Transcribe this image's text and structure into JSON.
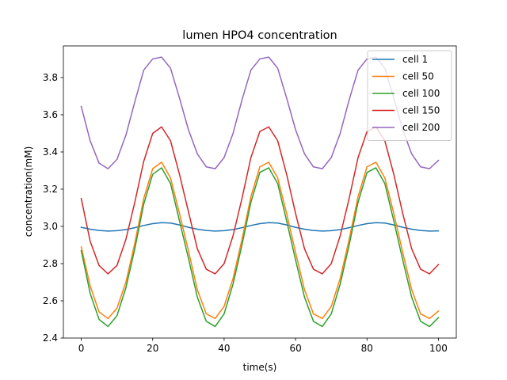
{
  "chart_data": {
    "type": "line",
    "title": "lumen HPO4 concentration",
    "xlabel": "time(s)",
    "ylabel": "concentration(mM)",
    "xlim": [
      -5,
      105
    ],
    "ylim": [
      2.4,
      3.97
    ],
    "xticks": [
      0,
      20,
      40,
      60,
      80,
      100
    ],
    "xtick_labels": [
      "0",
      "20",
      "40",
      "60",
      "80",
      "100"
    ],
    "yticks": [
      2.4,
      2.6,
      2.8,
      3.0,
      3.2,
      3.4,
      3.6,
      3.8
    ],
    "ytick_labels": [
      "2.4",
      "2.6",
      "2.8",
      "3.0",
      "3.2",
      "3.4",
      "3.6",
      "3.8"
    ],
    "grid": false,
    "legend_position": "top-right",
    "x": [
      0,
      2.5,
      5,
      7.5,
      10,
      12.5,
      15,
      17.5,
      20,
      22.5,
      25,
      27.5,
      30,
      32.5,
      35,
      37.5,
      40,
      42.5,
      45,
      47.5,
      50,
      52.5,
      55,
      57.5,
      60,
      62.5,
      65,
      67.5,
      70,
      72.5,
      75,
      77.5,
      80,
      82.5,
      85,
      87.5,
      90,
      92.5,
      95,
      97.5,
      100
    ],
    "series": [
      {
        "name": "cell 1",
        "color": "#1f77b4",
        "values": [
          2.995,
          2.985,
          2.978,
          2.975,
          2.977,
          2.983,
          2.993,
          3.005,
          3.015,
          3.02,
          3.018,
          3.008,
          2.995,
          2.985,
          2.978,
          2.975,
          2.977,
          2.983,
          2.993,
          3.005,
          3.015,
          3.02,
          3.018,
          3.008,
          2.995,
          2.985,
          2.978,
          2.975,
          2.977,
          2.983,
          2.993,
          3.005,
          3.015,
          3.02,
          3.018,
          3.008,
          2.995,
          2.985,
          2.978,
          2.975,
          2.976
        ]
      },
      {
        "name": "cell 50",
        "color": "#ff7f0e",
        "values": [
          2.89,
          2.68,
          2.54,
          2.505,
          2.56,
          2.7,
          2.91,
          3.15,
          3.31,
          3.345,
          3.26,
          3.07,
          2.87,
          2.66,
          2.53,
          2.505,
          2.57,
          2.72,
          2.93,
          3.16,
          3.32,
          3.345,
          3.26,
          3.07,
          2.86,
          2.66,
          2.53,
          2.505,
          2.57,
          2.72,
          2.93,
          3.16,
          3.32,
          3.345,
          3.26,
          3.07,
          2.86,
          2.66,
          2.53,
          2.505,
          2.545
        ]
      },
      {
        "name": "cell 100",
        "color": "#2ca02c",
        "values": [
          2.87,
          2.64,
          2.5,
          2.462,
          2.52,
          2.67,
          2.88,
          3.12,
          3.28,
          3.315,
          3.23,
          3.03,
          2.83,
          2.62,
          2.49,
          2.462,
          2.53,
          2.69,
          2.9,
          3.13,
          3.29,
          3.315,
          3.23,
          3.03,
          2.82,
          2.62,
          2.49,
          2.462,
          2.53,
          2.69,
          2.9,
          3.13,
          3.29,
          3.315,
          3.23,
          3.03,
          2.82,
          2.62,
          2.49,
          2.462,
          2.51
        ]
      },
      {
        "name": "cell 150",
        "color": "#d62728",
        "values": [
          3.15,
          2.92,
          2.79,
          2.745,
          2.79,
          2.93,
          3.13,
          3.35,
          3.5,
          3.535,
          3.46,
          3.28,
          3.08,
          2.88,
          2.77,
          2.745,
          2.8,
          2.95,
          3.15,
          3.37,
          3.51,
          3.535,
          3.46,
          3.28,
          3.07,
          2.88,
          2.77,
          2.745,
          2.8,
          2.95,
          3.15,
          3.37,
          3.51,
          3.535,
          3.46,
          3.28,
          3.07,
          2.88,
          2.77,
          2.745,
          2.795
        ]
      },
      {
        "name": "cell 200",
        "color": "#9467bd",
        "values": [
          3.645,
          3.46,
          3.34,
          3.31,
          3.36,
          3.49,
          3.67,
          3.84,
          3.9,
          3.91,
          3.85,
          3.69,
          3.52,
          3.39,
          3.32,
          3.31,
          3.37,
          3.5,
          3.68,
          3.84,
          3.9,
          3.91,
          3.85,
          3.69,
          3.52,
          3.39,
          3.32,
          3.31,
          3.37,
          3.5,
          3.68,
          3.84,
          3.9,
          3.91,
          3.85,
          3.69,
          3.52,
          3.39,
          3.32,
          3.31,
          3.355
        ]
      }
    ]
  }
}
